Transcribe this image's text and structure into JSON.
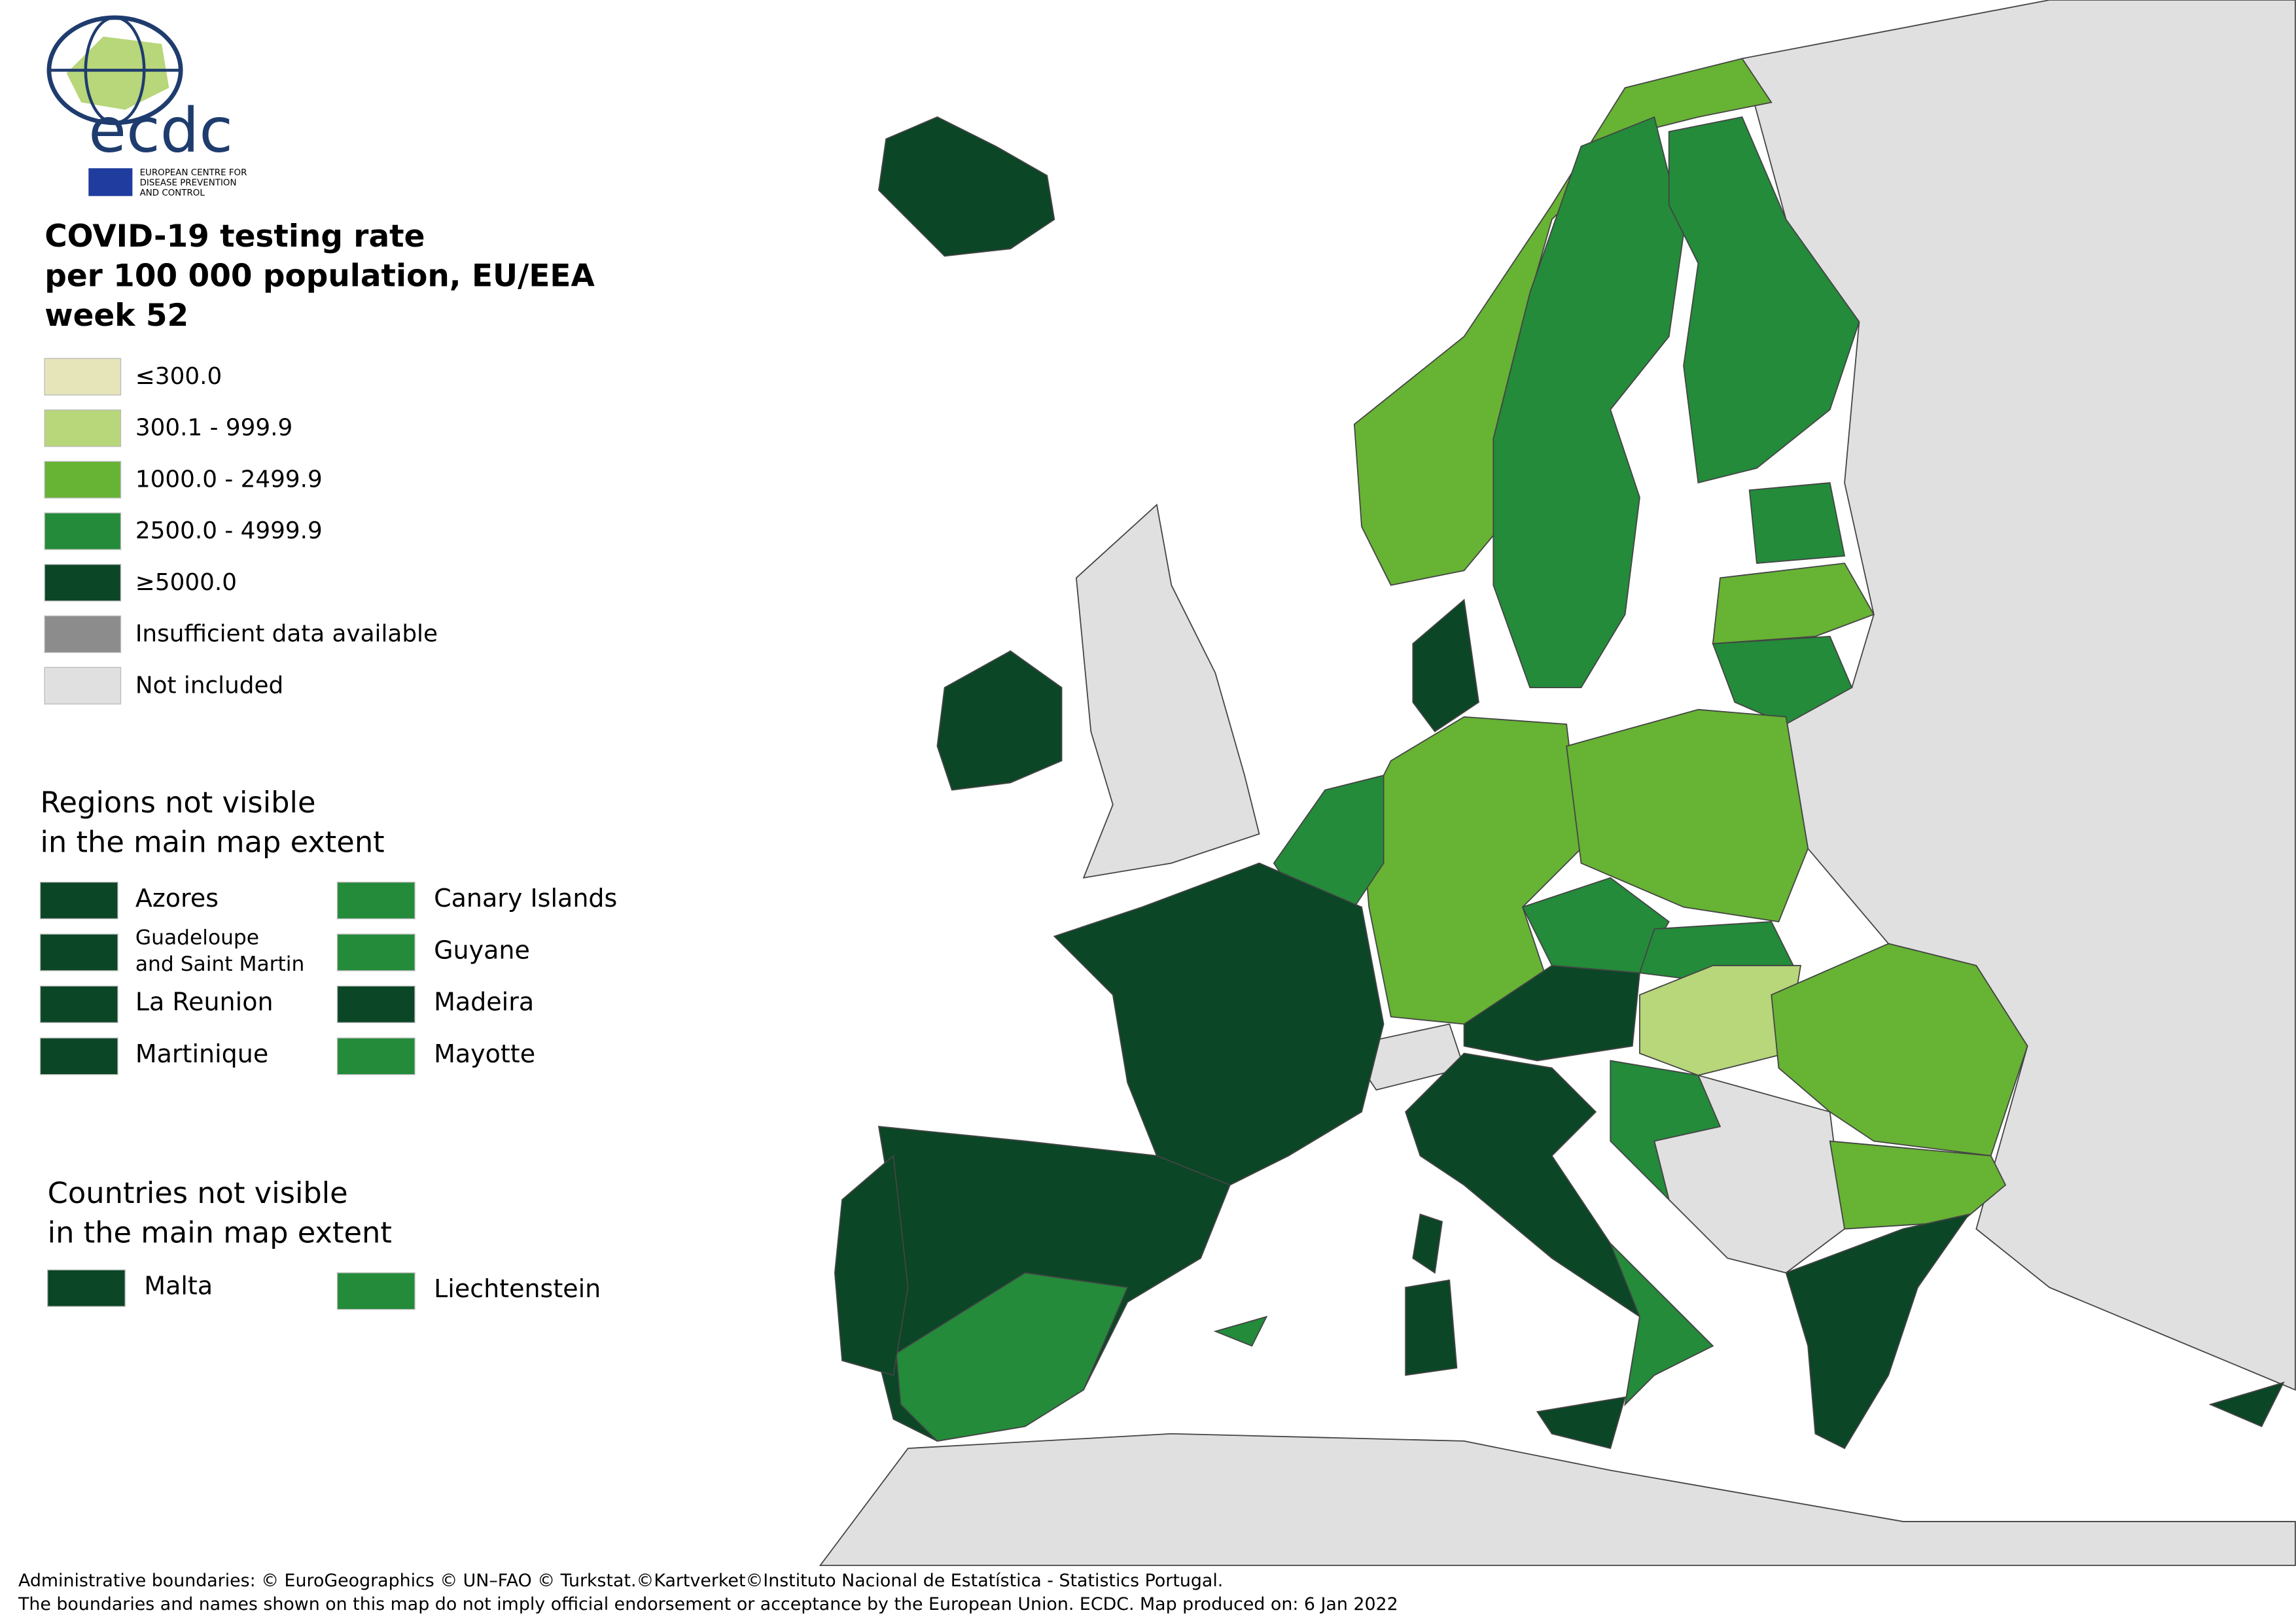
{
  "logo": {
    "name": "ecdc",
    "subtitle": [
      "EUROPEAN CENTRE FOR",
      "DISEASE PREVENTION",
      "AND CONTROL"
    ]
  },
  "title": [
    "COVID-19 testing rate",
    "per 100 000 population, EU/EEA",
    "week 52"
  ],
  "legend": [
    {
      "label": "≤300.0",
      "color": "#e6e5b9"
    },
    {
      "label": "300.1 - 999.9",
      "color": "#b8d67a"
    },
    {
      "label": "1000.0 - 2499.9",
      "color": "#67b334"
    },
    {
      "label": "2500.0 - 4999.9",
      "color": "#238b3a"
    },
    {
      "label": "≥5000.0",
      "color": "#0b4626"
    },
    {
      "label": "Insufficient data available",
      "color": "#8c8c8c"
    },
    {
      "label": "Not included",
      "color": "#e0e0e0"
    }
  ],
  "regions": {
    "heading": [
      "Regions not visible",
      "in the main map extent"
    ],
    "items": [
      {
        "label": [
          "Azores"
        ],
        "color": "#0b4626"
      },
      {
        "label": [
          "Guadeloupe",
          "and Saint Martin"
        ],
        "color": "#0b4626"
      },
      {
        "label": [
          "La Reunion"
        ],
        "color": "#0b4626"
      },
      {
        "label": [
          "Martinique"
        ],
        "color": "#0b4626"
      },
      {
        "label": [
          "Canary Islands"
        ],
        "color": "#238b3a"
      },
      {
        "label": [
          "Guyane"
        ],
        "color": "#238b3a"
      },
      {
        "label": [
          "Madeira"
        ],
        "color": "#0b4626"
      },
      {
        "label": [
          "Mayotte"
        ],
        "color": "#238b3a"
      }
    ]
  },
  "countries": {
    "heading": [
      "Countries not visible",
      "in the main map extent"
    ],
    "items": [
      {
        "label": [
          "Malta"
        ],
        "color": "#0b4626"
      },
      {
        "label": [
          "Liechtenstein"
        ],
        "color": "#238b3a"
      }
    ]
  },
  "footer": [
    "Administrative boundaries: © EuroGeographics © UN–FAO © Turkstat.©Kartverket©Instituto Nacional de Estatística - Statistics Portugal.",
    "The boundaries and names shown on this map do not imply official endorsement or acceptance by the European Union. ECDC. Map produced on: 6 Jan 2022"
  ]
}
